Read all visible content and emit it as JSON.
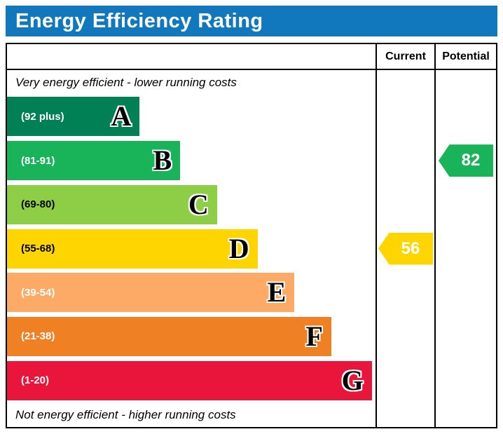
{
  "header": {
    "title": "Energy Efficiency Rating",
    "title_bar_color": "#1278be",
    "title_text_color": "#ffffff"
  },
  "table": {
    "current_label": "Current",
    "potential_label": "Potential"
  },
  "notes": {
    "top": "Very energy efficient - lower running costs",
    "bottom": "Not energy efficient - higher running costs"
  },
  "chart_data": {
    "type": "bar",
    "title": "Energy Efficiency Rating",
    "orientation": "horizontal",
    "bands": [
      {
        "letter": "A",
        "range": "(92 plus)",
        "color": "#008054",
        "text_color": "#ffffff",
        "width_pct": 36
      },
      {
        "letter": "B",
        "range": "(81-91)",
        "color": "#19b459",
        "text_color": "#ffffff",
        "width_pct": 47
      },
      {
        "letter": "C",
        "range": "(69-80)",
        "color": "#8dce46",
        "text_color": "#000000",
        "width_pct": 57
      },
      {
        "letter": "D",
        "range": "(55-68)",
        "color": "#ffd500",
        "text_color": "#000000",
        "width_pct": 68
      },
      {
        "letter": "E",
        "range": "(39-54)",
        "color": "#fcaa65",
        "text_color": "#ffffff",
        "width_pct": 78
      },
      {
        "letter": "F",
        "range": "(21-38)",
        "color": "#ef8023",
        "text_color": "#ffffff",
        "width_pct": 88
      },
      {
        "letter": "G",
        "range": "(1-20)",
        "color": "#e9153b",
        "text_color": "#ffffff",
        "width_pct": 99
      }
    ],
    "current": {
      "value": 56,
      "band": "D",
      "color": "#ffd500",
      "text_color": "#ffffff"
    },
    "potential": {
      "value": 82,
      "band": "B",
      "color": "#19b459",
      "text_color": "#ffffff"
    }
  }
}
